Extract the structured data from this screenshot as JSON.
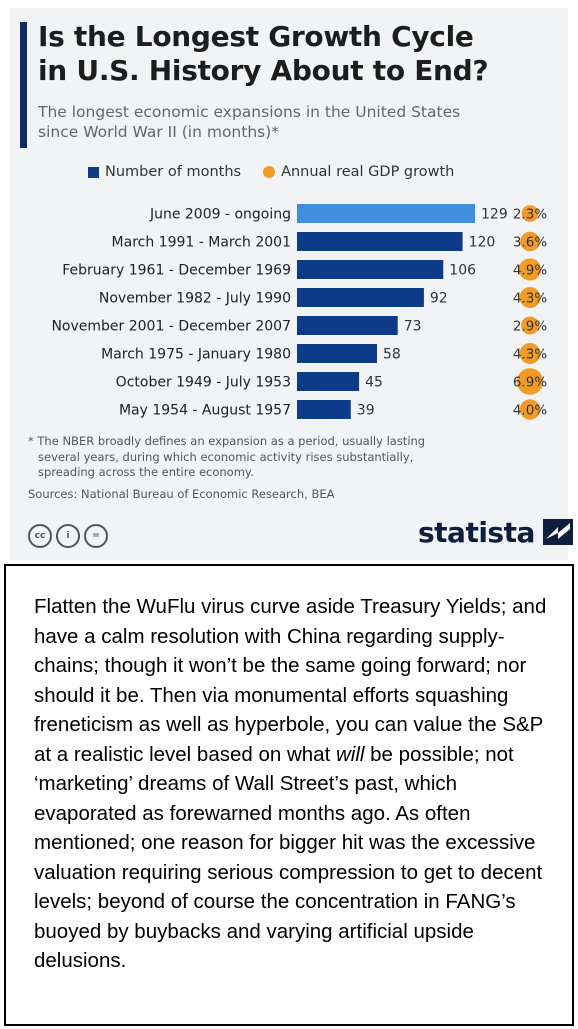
{
  "infographic": {
    "title_line1": "Is the Longest Growth Cycle",
    "title_line2": "in U.S. History About to End?",
    "subtitle_line1": "The longest economic expansions in the United States",
    "subtitle_line2": "since World War II (in months)*",
    "legend": [
      {
        "label": "Number of months",
        "color": "#0e3a8a",
        "shape": "square"
      },
      {
        "label": "Annual real GDP growth",
        "color": "#f39b27",
        "shape": "circle"
      }
    ],
    "footnote_lines": [
      "* The NBER broadly defines an expansion as a period, usually lasting",
      "several years, during which economic activity rises substantially,",
      "spreading across the entire economy."
    ],
    "sources": "Sources: National Bureau of Economic Research, BEA",
    "license_icons": [
      "cc-icon",
      "attribution-icon",
      "no-derivatives-icon"
    ],
    "license_text": [
      "cc",
      "i",
      "="
    ],
    "brand": "statista",
    "colors": {
      "bar": "#0e3a8a",
      "bar_highlight": "#3f8fde",
      "dot": "#f39b27",
      "title_accent": "#0e2b63"
    }
  },
  "chart_data": {
    "type": "bar",
    "orientation": "horizontal",
    "categories": [
      "June 2009 - ongoing",
      "March 1991 - March 2001",
      "February 1961 - December 1969",
      "November 1982 - July 1990",
      "November 2001 - December 2007",
      "March 1975 - January 1980",
      "October 1949 - July 1953",
      "May 1954 - August 1957"
    ],
    "series": [
      {
        "name": "Number of months",
        "values": [
          129,
          120,
          106,
          92,
          73,
          58,
          45,
          39
        ]
      },
      {
        "name": "Annual real GDP growth",
        "values": [
          "2.3%",
          "3.6%",
          "4.9%",
          "4.3%",
          "2.9%",
          "4.3%",
          "6.9%",
          "4.0%"
        ],
        "numeric": [
          2.3,
          3.6,
          4.9,
          4.3,
          2.9,
          4.3,
          6.9,
          4.0
        ]
      }
    ],
    "highlighted_category": "June 2009 - ongoing",
    "xlim": [
      0,
      129
    ],
    "grid": false
  },
  "comment": {
    "paragraph_before_em": "Flatten the WuFlu virus curve aside Treasury Yields; and have a calm resolution with China regarding supply-chains; though it won’t be the same going forward; nor should it be. Then via monumental efforts squashing freneticism as well as hyperbole, you can value the S&P at a realistic level based on what ",
    "em_word": "will",
    "paragraph_after_em": " be possible; not ‘marketing’ dreams of Wall Street’s past, which evaporated as forewarned months ago. As often mentioned; one reason for bigger hit was the excessive valuation requiring serious compression to get to decent levels; beyond of course the concentration in FANG’s buoyed by buybacks and varying artificial upside delusions."
  }
}
